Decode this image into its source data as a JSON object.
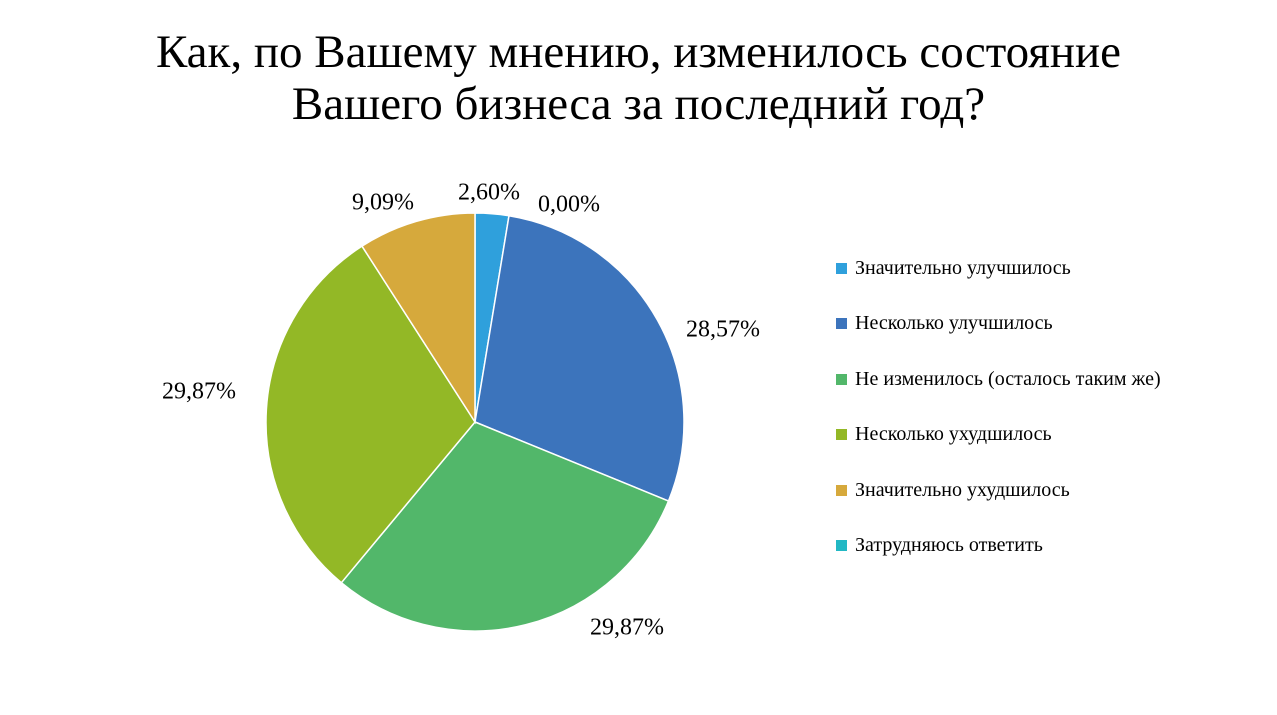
{
  "chart_data": {
    "type": "pie",
    "title_lines": [
      "Как, по Вашему мнению, изменилось состояние",
      "Вашего бизнеса за последний год?"
    ],
    "legend_position": "right",
    "slices": [
      {
        "name": "Значительно улучшилось",
        "value": 2.6,
        "label": "2,60%",
        "color": "#2FA0DC"
      },
      {
        "name": "Несколько улучшилось",
        "value": 28.57,
        "label": "28,57%",
        "color": "#3C74BC"
      },
      {
        "name": "Не изменилось (осталось таким же)",
        "value": 29.87,
        "label": "29,87%",
        "color": "#52B76A"
      },
      {
        "name": "Несколько ухудшилось",
        "value": 29.87,
        "label": "29,87%",
        "color": "#93B826"
      },
      {
        "name": "Значительно ухудшилось",
        "value": 9.09,
        "label": "9,09%",
        "color": "#D6A93C"
      },
      {
        "name": "Затрудняюсь ответить",
        "value": 0.0,
        "label": "0,00%",
        "color": "#22B8C4"
      }
    ]
  }
}
